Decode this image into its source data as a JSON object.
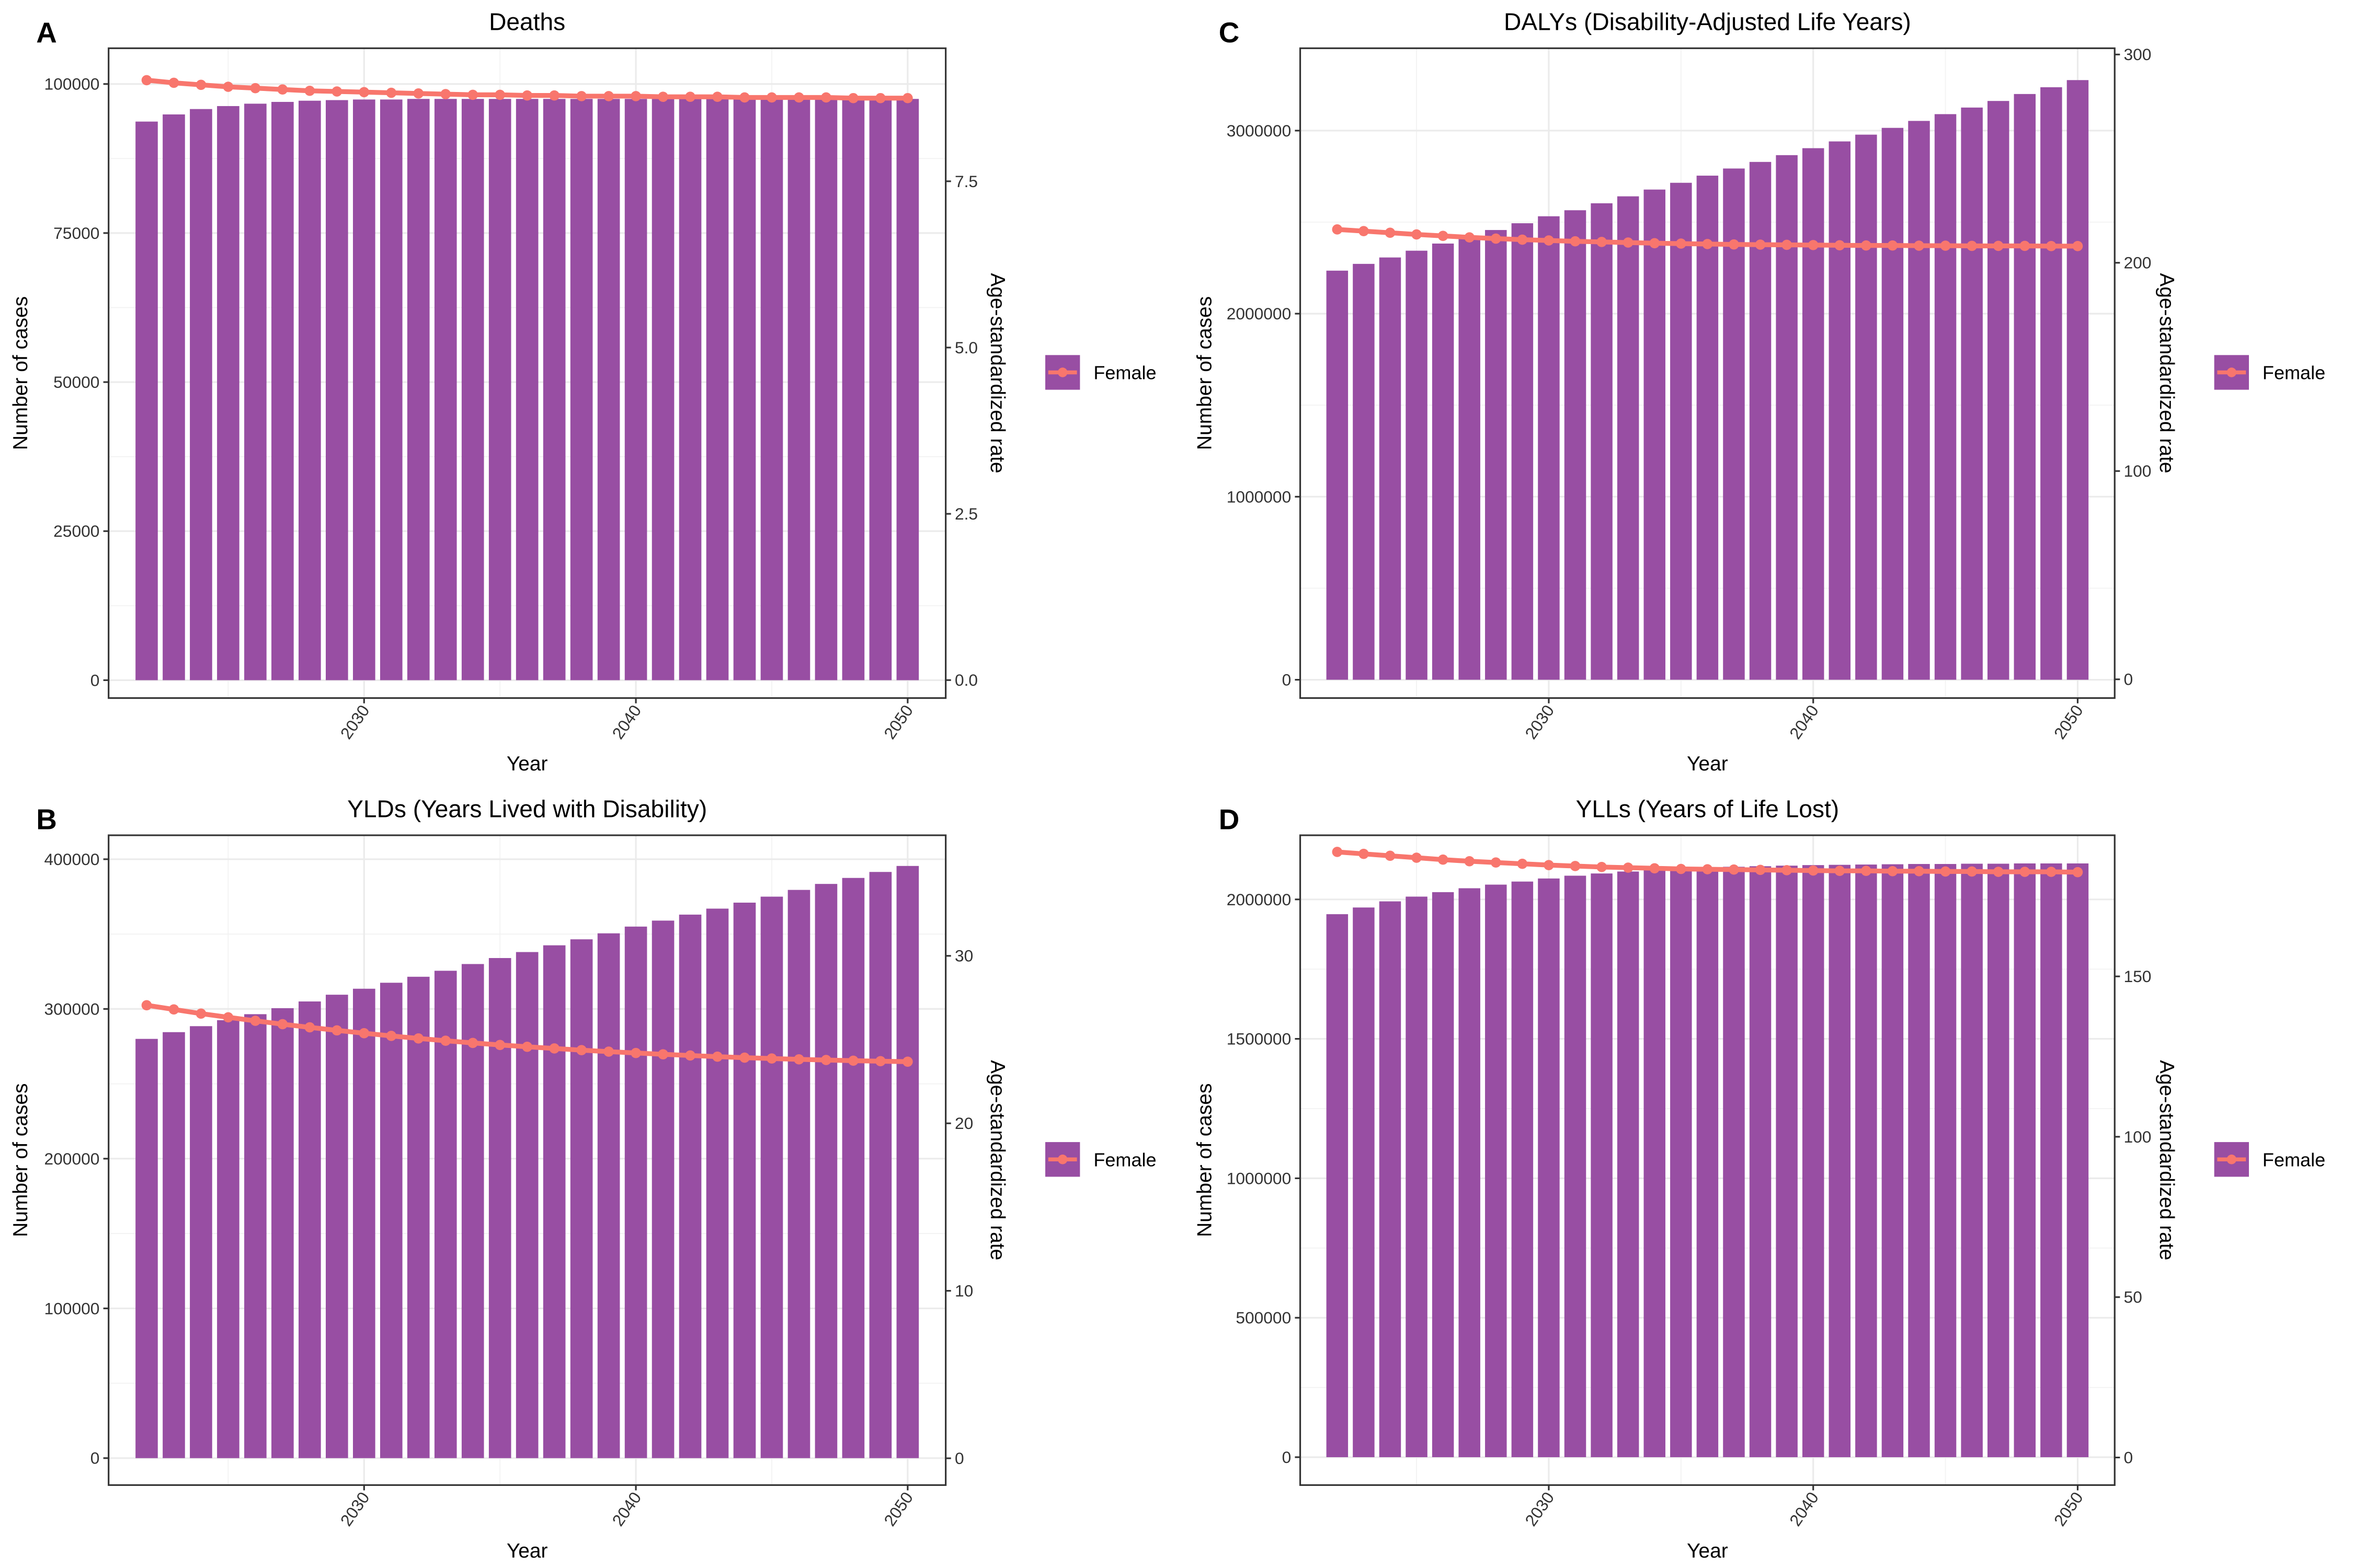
{
  "figure": {
    "legend_label": "Female",
    "x_axis_label": "Year",
    "left_axis_label": "Number of cases",
    "right_axis_label": "Age-standardized rate",
    "colors": {
      "bar": "#984EA3",
      "line": "#F8766D",
      "grid": "#EBEBEB",
      "frame": "#333333"
    }
  },
  "chart_data": [
    {
      "panel": "A",
      "type": "bar+line",
      "title": "Deaths",
      "xlabel": "Year",
      "ylabel": "Number of cases",
      "y2label": "Age-standardized rate",
      "legend": [
        "Female"
      ],
      "legend_position": "right",
      "grid": true,
      "x": [
        2022,
        2023,
        2024,
        2025,
        2026,
        2027,
        2028,
        2029,
        2030,
        2031,
        2032,
        2033,
        2034,
        2035,
        2036,
        2037,
        2038,
        2039,
        2040,
        2041,
        2042,
        2043,
        2044,
        2045,
        2046,
        2047,
        2048,
        2049,
        2050
      ],
      "x_ticks": [
        "2030",
        "2040",
        "2050"
      ],
      "xlim": [
        2020.6,
        2051.4
      ],
      "ylim": [
        -3000,
        106000
      ],
      "y_ticks": [
        0,
        25000,
        50000,
        75000,
        100000
      ],
      "y_tick_labels": [
        "0",
        "25000",
        "50000",
        "75000",
        "100000"
      ],
      "y2lim": [
        -0.27,
        9.5
      ],
      "y2_ticks": [
        0,
        2.5,
        5.0,
        7.5
      ],
      "y2_tick_labels": [
        "0.0",
        "2.5",
        "5.0",
        "7.5"
      ],
      "series": [
        {
          "name": "Number of cases (Female)",
          "kind": "bar",
          "axis": "left",
          "values": [
            93700,
            94900,
            95800,
            96300,
            96700,
            97000,
            97200,
            97300,
            97400,
            97400,
            97500,
            97500,
            97500,
            97500,
            97500,
            97500,
            97500,
            97500,
            97500,
            97500,
            97500,
            97500,
            97500,
            97500,
            97500,
            97500,
            97500,
            97500,
            97500
          ]
        },
        {
          "name": "Age-standardized rate (Female)",
          "kind": "line",
          "axis": "right",
          "values": [
            9.02,
            8.98,
            8.95,
            8.92,
            8.9,
            8.88,
            8.86,
            8.85,
            8.84,
            8.83,
            8.82,
            8.81,
            8.8,
            8.8,
            8.79,
            8.79,
            8.78,
            8.78,
            8.78,
            8.77,
            8.77,
            8.77,
            8.76,
            8.76,
            8.76,
            8.76,
            8.75,
            8.75,
            8.75
          ]
        }
      ]
    },
    {
      "panel": "C",
      "type": "bar+line",
      "title": "DALYs (Disability-Adjusted Life Years)",
      "xlabel": "Year",
      "ylabel": "Number of cases",
      "y2label": "Age-standardized rate",
      "legend": [
        "Female"
      ],
      "legend_position": "right",
      "grid": true,
      "x": [
        2022,
        2023,
        2024,
        2025,
        2026,
        2027,
        2028,
        2029,
        2030,
        2031,
        2032,
        2033,
        2034,
        2035,
        2036,
        2037,
        2038,
        2039,
        2040,
        2041,
        2042,
        2043,
        2044,
        2045,
        2046,
        2047,
        2048,
        2049,
        2050
      ],
      "x_ticks": [
        "2030",
        "2040",
        "2050"
      ],
      "xlim": [
        2020.6,
        2051.4
      ],
      "ylim": [
        -100000,
        3450000
      ],
      "y_ticks": [
        0,
        1000000,
        2000000,
        3000000
      ],
      "y_tick_labels": [
        "0",
        "1000000",
        "2000000",
        "3000000"
      ],
      "y2lim": [
        -9,
        303
      ],
      "y2_ticks": [
        0,
        100,
        200,
        300
      ],
      "y2_tick_labels": [
        "0",
        "100",
        "200",
        "300"
      ],
      "series": [
        {
          "name": "Number of cases (Female)",
          "kind": "bar",
          "axis": "left",
          "values": [
            2235000,
            2272000,
            2307000,
            2344000,
            2383000,
            2421000,
            2457000,
            2494000,
            2532000,
            2565000,
            2603000,
            2641000,
            2678000,
            2715000,
            2754000,
            2793000,
            2829000,
            2866000,
            2904000,
            2941000,
            2978000,
            3015000,
            3053000,
            3090000,
            3126000,
            3162000,
            3200000,
            3237000,
            3276000
          ]
        },
        {
          "name": "Age-standardized rate (Female)",
          "kind": "line",
          "axis": "right",
          "values": [
            216.0,
            215.2,
            214.4,
            213.6,
            212.9,
            212.2,
            211.6,
            211.1,
            210.7,
            210.3,
            210.0,
            209.7,
            209.4,
            209.2,
            209.0,
            208.8,
            208.7,
            208.6,
            208.5,
            208.4,
            208.3,
            208.3,
            208.2,
            208.2,
            208.1,
            208.1,
            208.1,
            208.0,
            208.0
          ]
        }
      ]
    },
    {
      "panel": "B",
      "type": "bar+line",
      "title": "YLDs (Years Lived with Disability)",
      "xlabel": "Year",
      "ylabel": "Number of cases",
      "y2label": "Age-standardized rate",
      "legend": [
        "Female"
      ],
      "legend_position": "right",
      "grid": true,
      "x": [
        2022,
        2023,
        2024,
        2025,
        2026,
        2027,
        2028,
        2029,
        2030,
        2031,
        2032,
        2033,
        2034,
        2035,
        2036,
        2037,
        2038,
        2039,
        2040,
        2041,
        2042,
        2043,
        2044,
        2045,
        2046,
        2047,
        2048,
        2049,
        2050
      ],
      "x_ticks": [
        "2030",
        "2040",
        "2050"
      ],
      "xlim": [
        2020.6,
        2051.4
      ],
      "ylim": [
        -18000,
        416000
      ],
      "y_ticks": [
        0,
        100000,
        200000,
        300000,
        400000
      ],
      "y_tick_labels": [
        "0",
        "100000",
        "200000",
        "300000",
        "400000"
      ],
      "y2lim": [
        -1.6,
        37.2
      ],
      "y2_ticks": [
        0,
        10,
        20,
        30
      ],
      "y2_tick_labels": [
        "0",
        "10",
        "20",
        "30"
      ],
      "series": [
        {
          "name": "Number of cases (Female)",
          "kind": "bar",
          "axis": "left",
          "values": [
            280000,
            284500,
            288500,
            292500,
            296500,
            300500,
            305000,
            309500,
            313500,
            317500,
            321500,
            325500,
            330000,
            334000,
            338000,
            342500,
            346500,
            350500,
            355000,
            359000,
            363000,
            367000,
            371000,
            375000,
            379500,
            383500,
            387500,
            391500,
            395500
          ]
        },
        {
          "name": "Age-standardized rate (Female)",
          "kind": "line",
          "axis": "right",
          "values": [
            27.05,
            26.8,
            26.55,
            26.33,
            26.12,
            25.92,
            25.73,
            25.55,
            25.38,
            25.22,
            25.07,
            24.93,
            24.8,
            24.68,
            24.57,
            24.47,
            24.37,
            24.28,
            24.2,
            24.12,
            24.05,
            23.98,
            23.92,
            23.87,
            23.82,
            23.78,
            23.74,
            23.71,
            23.68
          ]
        }
      ]
    },
    {
      "panel": "D",
      "type": "bar+line",
      "title": "YLLs (Years of Life Lost)",
      "xlabel": "Year",
      "ylabel": "Number of cases",
      "y2label": "Age-standardized rate",
      "legend": [
        "Female"
      ],
      "legend_position": "right",
      "grid": true,
      "x": [
        2022,
        2023,
        2024,
        2025,
        2026,
        2027,
        2028,
        2029,
        2030,
        2031,
        2032,
        2033,
        2034,
        2035,
        2036,
        2037,
        2038,
        2039,
        2040,
        2041,
        2042,
        2043,
        2044,
        2045,
        2046,
        2047,
        2048,
        2049,
        2050
      ],
      "x_ticks": [
        "2030",
        "2040",
        "2050"
      ],
      "xlim": [
        2020.6,
        2051.4
      ],
      "ylim": [
        -100000,
        2230000
      ],
      "y_ticks": [
        0,
        500000,
        1000000,
        1500000,
        2000000
      ],
      "y_tick_labels": [
        "0",
        "500000",
        "1000000",
        "1500000",
        "2000000"
      ],
      "y2lim": [
        -8.6,
        194
      ],
      "y2_ticks": [
        0,
        50,
        100,
        150
      ],
      "y2_tick_labels": [
        "0",
        "50",
        "100",
        "150"
      ],
      "series": [
        {
          "name": "Number of cases (Female)",
          "kind": "bar",
          "axis": "left",
          "values": [
            1947000,
            1971000,
            1993000,
            2010000,
            2026000,
            2040000,
            2053000,
            2064000,
            2075000,
            2085000,
            2093000,
            2100000,
            2106000,
            2110000,
            2114000,
            2117000,
            2119000,
            2121000,
            2123000,
            2124000,
            2125000,
            2126000,
            2127000,
            2127000,
            2128000,
            2128000,
            2129000,
            2129000,
            2129000
          ]
        },
        {
          "name": "Age-standardized rate (Female)",
          "kind": "line",
          "axis": "right",
          "values": [
            188.8,
            188.2,
            187.6,
            187.0,
            186.4,
            185.9,
            185.5,
            185.1,
            184.7,
            184.4,
            184.1,
            183.9,
            183.7,
            183.5,
            183.4,
            183.3,
            183.2,
            183.1,
            183.0,
            182.9,
            182.9,
            182.8,
            182.8,
            182.7,
            182.7,
            182.6,
            182.6,
            182.6,
            182.5
          ]
        }
      ]
    }
  ]
}
